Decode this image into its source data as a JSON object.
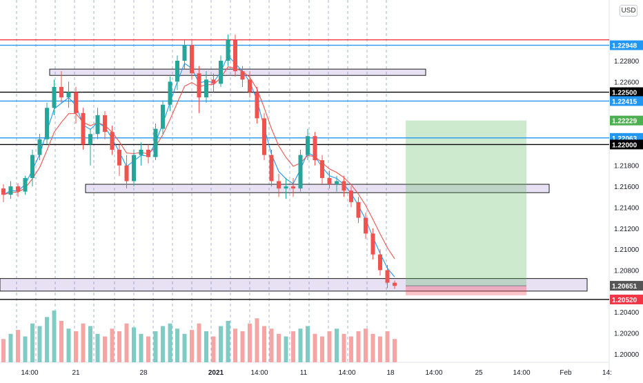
{
  "currency": "USD",
  "chart_data": {
    "type": "candlestick",
    "title": "",
    "instrument_currency": "USD",
    "ylim": [
      1.1992,
      1.2338
    ],
    "y_ticks": [
      1.2,
      1.202,
      1.204,
      1.208,
      1.21,
      1.212,
      1.214,
      1.216,
      1.218,
      1.226,
      1.228
    ],
    "y_tick_labels": [
      "1.20000",
      "1.20200",
      "1.20400",
      "1.20800",
      "1.21000",
      "1.21200",
      "1.21400",
      "1.21600",
      "1.21800",
      "1.22600",
      "1.22800"
    ],
    "x_tick_labels": [
      "14:00",
      "21",
      "28",
      "2021",
      "14:00",
      "11",
      "14:00",
      "18",
      "14:00",
      "25",
      "14:00",
      "Feb",
      "14:"
    ],
    "price_tags": [
      {
        "label": "1.22948",
        "value": 1.22948,
        "color": "#2196f3"
      },
      {
        "label": "1.22500",
        "value": 1.225,
        "color": "#000000"
      },
      {
        "label": "1.22415",
        "value": 1.22415,
        "color": "#2196f3"
      },
      {
        "label": "1.22229",
        "value": 1.22229,
        "color": "#4caf50"
      },
      {
        "label": "1.22063",
        "value": 1.22063,
        "color": "#2196f3"
      },
      {
        "label": "1.22000",
        "value": 1.22,
        "color": "#000000"
      },
      {
        "label": "1.20651",
        "value": 1.20651,
        "color": "#555555"
      },
      {
        "label": "1.20520",
        "value": 1.2052,
        "color": "#f23645"
      }
    ],
    "horizontal_lines": [
      {
        "value": 1.23,
        "color": "#f23645"
      },
      {
        "value": 1.22948,
        "color": "#2196f3"
      },
      {
        "value": 1.225,
        "color": "#000000"
      },
      {
        "value": 1.22415,
        "color": "#2196f3"
      },
      {
        "value": 1.22063,
        "color": "#2196f3"
      },
      {
        "value": 1.22,
        "color": "#000000"
      },
      {
        "value": 1.2052,
        "color": "#000000"
      }
    ],
    "zones": [
      {
        "y1": 1.2272,
        "y2": 1.2266,
        "from_bar": 8,
        "to_bar": "extends"
      },
      {
        "y1": 1.2162,
        "y2": 1.2154,
        "from_bar": 14,
        "to_bar": "extends"
      },
      {
        "y1": 1.2072,
        "y2": 1.206,
        "from_bar": 0,
        "to_bar": "extends"
      }
    ],
    "position": {
      "entry": 1.20651,
      "target": 1.22229,
      "stop": 1.2056
    },
    "candles": [
      [
        1.2158,
        1.2162,
        1.2145,
        1.2152
      ],
      [
        1.2152,
        1.2165,
        1.2148,
        1.216
      ],
      [
        1.216,
        1.2163,
        1.215,
        1.2155
      ],
      [
        1.2155,
        1.217,
        1.2152,
        1.2168
      ],
      [
        1.2168,
        1.2195,
        1.216,
        1.219
      ],
      [
        1.219,
        1.221,
        1.2185,
        1.2205
      ],
      [
        1.2205,
        1.224,
        1.22,
        1.2235
      ],
      [
        1.2235,
        1.2262,
        1.2228,
        1.2255
      ],
      [
        1.2255,
        1.227,
        1.224,
        1.2245
      ],
      [
        1.2245,
        1.226,
        1.2235,
        1.225
      ],
      [
        1.225,
        1.2255,
        1.222,
        1.223
      ],
      [
        1.223,
        1.2235,
        1.2195,
        1.22
      ],
      [
        1.22,
        1.2215,
        1.218,
        1.221
      ],
      [
        1.221,
        1.2235,
        1.2205,
        1.2228
      ],
      [
        1.2228,
        1.2232,
        1.2205,
        1.2212
      ],
      [
        1.2212,
        1.2218,
        1.219,
        1.2195
      ],
      [
        1.2195,
        1.22,
        1.217,
        1.218
      ],
      [
        1.218,
        1.219,
        1.2158,
        1.2165
      ],
      [
        1.2165,
        1.2195,
        1.216,
        1.219
      ],
      [
        1.219,
        1.2202,
        1.218,
        1.2195
      ],
      [
        1.2195,
        1.22,
        1.2182,
        1.2188
      ],
      [
        1.2188,
        1.222,
        1.2185,
        1.2215
      ],
      [
        1.2215,
        1.2242,
        1.221,
        1.2238
      ],
      [
        1.2238,
        1.2265,
        1.2232,
        1.226
      ],
      [
        1.226,
        1.2285,
        1.2252,
        1.228
      ],
      [
        1.228,
        1.23,
        1.2272,
        1.2295
      ],
      [
        1.2295,
        1.23,
        1.2262,
        1.2268
      ],
      [
        1.2268,
        1.2275,
        1.223,
        1.2245
      ],
      [
        1.2245,
        1.227,
        1.224,
        1.2262
      ],
      [
        1.2262,
        1.2268,
        1.225,
        1.2258
      ],
      [
        1.2258,
        1.2285,
        1.2255,
        1.228
      ],
      [
        1.228,
        1.2305,
        1.2275,
        1.23
      ],
      [
        1.23,
        1.2305,
        1.2265,
        1.227
      ],
      [
        1.227,
        1.2275,
        1.2255,
        1.2262
      ],
      [
        1.2262,
        1.227,
        1.2245,
        1.225
      ],
      [
        1.225,
        1.2255,
        1.222,
        1.2225
      ],
      [
        1.2225,
        1.223,
        1.2185,
        1.219
      ],
      [
        1.219,
        1.2195,
        1.216,
        1.2165
      ],
      [
        1.2165,
        1.2172,
        1.215,
        1.2158
      ],
      [
        1.2158,
        1.2168,
        1.2148,
        1.216
      ],
      [
        1.216,
        1.2168,
        1.215,
        1.2158
      ],
      [
        1.2158,
        1.2195,
        1.2155,
        1.219
      ],
      [
        1.219,
        1.2215,
        1.2185,
        1.2208
      ],
      [
        1.2208,
        1.2212,
        1.218,
        1.2185
      ],
      [
        1.2185,
        1.219,
        1.2162,
        1.2168
      ],
      [
        1.2168,
        1.2175,
        1.2158,
        1.2162
      ],
      [
        1.2162,
        1.217,
        1.2155,
        1.2165
      ],
      [
        1.2165,
        1.217,
        1.215,
        1.2156
      ],
      [
        1.2156,
        1.216,
        1.214,
        1.2145
      ],
      [
        1.2145,
        1.215,
        1.2125,
        1.213
      ],
      [
        1.213,
        1.2135,
        1.211,
        1.2115
      ],
      [
        1.2115,
        1.212,
        1.209,
        1.2095
      ],
      [
        1.2095,
        1.21,
        1.2075,
        1.208
      ],
      [
        1.208,
        1.2085,
        1.2063,
        1.2068
      ],
      [
        1.2068,
        1.207,
        1.2062,
        1.2065
      ]
    ],
    "volume": [
      18,
      22,
      25,
      20,
      30,
      28,
      35,
      40,
      32,
      26,
      24,
      30,
      28,
      22,
      20,
      26,
      24,
      30,
      27,
      22,
      20,
      24,
      28,
      30,
      26,
      22,
      25,
      30,
      24,
      20,
      28,
      32,
      26,
      24,
      30,
      34,
      28,
      26,
      22,
      20,
      24,
      26,
      28,
      22,
      20,
      24,
      26,
      22,
      20,
      24,
      26,
      22,
      20,
      24,
      18
    ]
  }
}
